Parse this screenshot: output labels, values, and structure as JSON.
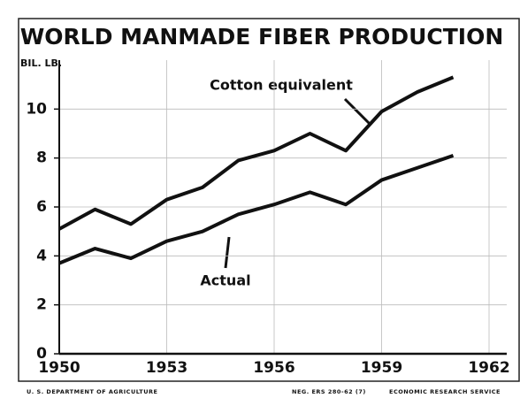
{
  "chart_data": {
    "type": "line",
    "title": "WORLD MANMADE FIBER PRODUCTION",
    "y_label": "BIL. LB.",
    "x": [
      1950,
      1951,
      1952,
      1953,
      1954,
      1955,
      1956,
      1957,
      1958,
      1959,
      1960,
      1961
    ],
    "series": [
      {
        "name": "Cotton equivalent",
        "color": "#111111",
        "values": [
          5.1,
          5.9,
          5.3,
          6.3,
          6.8,
          7.9,
          8.3,
          9.0,
          8.3,
          9.9,
          10.7,
          11.3
        ]
      },
      {
        "name": "Actual",
        "color": "#111111",
        "values": [
          3.7,
          4.3,
          3.9,
          4.6,
          5.0,
          5.7,
          6.1,
          6.6,
          6.1,
          7.1,
          7.6,
          8.1
        ]
      }
    ],
    "xlim": [
      1950,
      1962
    ],
    "xticks": [
      1950,
      1953,
      1956,
      1959,
      1962
    ],
    "ylim": [
      0,
      12
    ],
    "yticks": [
      0,
      2,
      4,
      6,
      8,
      10
    ],
    "grid": true,
    "footer": {
      "left": "U. S. DEPARTMENT OF AGRICULTURE",
      "neg": "NEG. ERS 280-62 (7)",
      "right": "ECONOMIC RESEARCH SERVICE"
    }
  }
}
